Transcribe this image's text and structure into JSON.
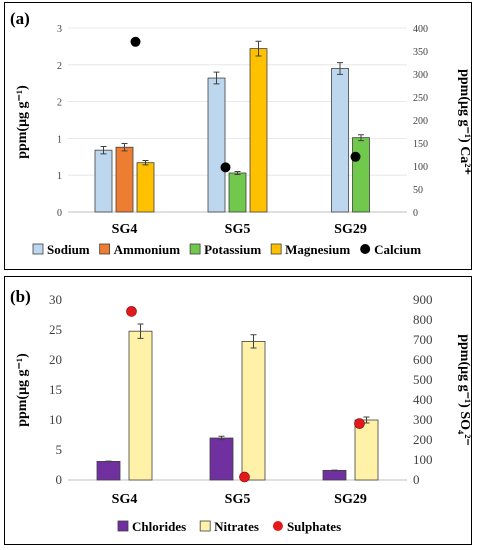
{
  "chart_data": [
    {
      "type": "bar",
      "panel_label": "(a)",
      "categories": [
        "SG4",
        "SG5",
        "SG29"
      ],
      "ylabel_left": "ppm(μg g⁻¹)",
      "ylabel_right": "ppm(μg g⁻¹) Ca²⁺",
      "left_ticks": [
        "0",
        "1",
        "1",
        "2",
        "2",
        "3"
      ],
      "ylim_left": [
        0,
        2.5
      ],
      "right_ticks": [
        "0",
        "50",
        "100",
        "150",
        "200",
        "250",
        "300",
        "350",
        "400"
      ],
      "ylim_right": [
        0,
        400
      ],
      "grid": true,
      "legend_position": "bottom",
      "series": [
        {
          "name": "Sodium",
          "axis": "left",
          "color": "#bdd7ee",
          "values": [
            0.84,
            1.82,
            1.95
          ],
          "errors": [
            0.05,
            0.08,
            0.08
          ]
        },
        {
          "name": "Ammonium",
          "axis": "left",
          "color": "#ed7d31",
          "values": [
            0.88,
            null,
            null
          ],
          "errors": [
            0.05,
            null,
            null
          ]
        },
        {
          "name": "Potassium",
          "axis": "left",
          "color": "#70c94d",
          "values": [
            null,
            0.53,
            1.01
          ],
          "errors": [
            null,
            0.02,
            0.04
          ]
        },
        {
          "name": "Magnesium",
          "axis": "left",
          "color": "#ffc000",
          "values": [
            0.67,
            2.22,
            null
          ],
          "errors": [
            0.03,
            0.1,
            null
          ]
        },
        {
          "name": "Calcium",
          "axis": "right",
          "color": "#000000",
          "marker": "dot",
          "values": [
            370,
            97,
            120
          ]
        }
      ]
    },
    {
      "type": "bar",
      "panel_label": "(b)",
      "categories": [
        "SG4",
        "SG5",
        "SG29"
      ],
      "ylabel_left": "ppm(μg g⁻¹)",
      "ylabel_right": "ppm(μg g⁻¹) SO₄²⁻",
      "left_ticks": [
        "0",
        "5",
        "10",
        "15",
        "20",
        "25",
        "30"
      ],
      "ylim_left": [
        0,
        30
      ],
      "right_ticks": [
        "0",
        "100",
        "200",
        "300",
        "400",
        "500",
        "600",
        "700",
        "800",
        "900"
      ],
      "ylim_right": [
        0,
        900
      ],
      "grid": false,
      "legend_position": "bottom",
      "series": [
        {
          "name": "Chlorides",
          "axis": "left",
          "color": "#7030a0",
          "values": [
            3.1,
            7.0,
            1.6
          ],
          "errors": [
            0.05,
            0.3,
            0.05
          ]
        },
        {
          "name": "Nitrates",
          "axis": "left",
          "color": "#fff2a8",
          "values": [
            24.8,
            23.1,
            10.0
          ],
          "errors": [
            1.2,
            1.1,
            0.5
          ]
        },
        {
          "name": "Sulphates",
          "axis": "right",
          "color": "#e31a1c",
          "marker": "dot",
          "values": [
            843,
            15,
            282
          ]
        }
      ]
    }
  ]
}
